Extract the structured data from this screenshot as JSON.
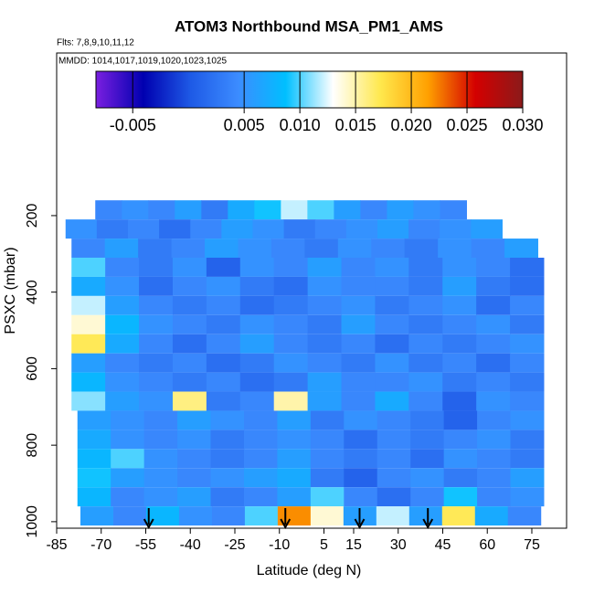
{
  "chart_data": {
    "type": "curtain",
    "title": "ATOM3 Northbound MSA_PM1_AMS",
    "flights_label": "Flts: 7,8,9,10,11,12",
    "dates_label": "MMDD: 1014,1017,1019,1020,1023,1025",
    "x_label": "Latitude (deg N)",
    "y_label": "PSXC (mbar)",
    "xlim": [
      -85,
      86.7
    ],
    "xticks": [
      -85,
      -70,
      -55,
      -40,
      -25,
      -10,
      5,
      15,
      30,
      45,
      60,
      75
    ],
    "ylim": [
      1017,
      -225
    ],
    "yticks": [
      200,
      400,
      600,
      800,
      1000
    ],
    "colorbar": {
      "clim": [
        -0.0083,
        0.03
      ],
      "colors": [
        "#7a1fe0",
        "#0000b0",
        "#1e5ae6",
        "#3c8cff",
        "#00bfff",
        "#ffffff",
        "#ffe84d",
        "#ffa000",
        "#d40000",
        "#8b1a1a"
      ],
      "ticks": [
        -0.005,
        0.005,
        {
          "value": 0.01,
          "label": "0.010"
        },
        0.015,
        {
          "value": 0.02,
          "label": "0.020"
        },
        0.025,
        {
          "value": 0.03,
          "label": "0.030"
        }
      ]
    },
    "arrows": [
      -54,
      -8,
      17,
      40
    ],
    "strips": [
      {
        "p": [
          160,
          210
        ],
        "lat": [
          -72,
          53
        ],
        "values": [
          0.004,
          0.005,
          0.004,
          0.006,
          0.003,
          0.007,
          0.009,
          0.012,
          0.01,
          0.006,
          0.004,
          0.006,
          0.005,
          0.004
        ]
      },
      {
        "p": [
          210,
          260
        ],
        "lat": [
          -82,
          65
        ],
        "values": [
          0.005,
          0.003,
          0.004,
          0.002,
          0.004,
          0.006,
          0.005,
          0.003,
          0.004,
          0.005,
          0.006,
          0.004,
          0.005,
          0.006
        ]
      },
      {
        "p": [
          260,
          310
        ],
        "lat": [
          -80,
          77
        ],
        "values": [
          0.004,
          0.006,
          0.003,
          0.004,
          0.006,
          0.005,
          0.004,
          0.003,
          0.005,
          0.004,
          0.003,
          0.005,
          0.004,
          0.006
        ]
      },
      {
        "p": [
          310,
          360
        ],
        "lat": [
          -80,
          79
        ],
        "values": [
          0.01,
          0.004,
          0.003,
          0.005,
          0.001,
          0.005,
          0.004,
          0.006,
          0.004,
          0.005,
          0.003,
          0.005,
          0.004,
          0.002
        ]
      },
      {
        "p": [
          360,
          410
        ],
        "lat": [
          -80,
          79
        ],
        "values": [
          0.007,
          0.005,
          0.002,
          0.004,
          0.005,
          0.003,
          0.002,
          0.005,
          0.004,
          0.004,
          0.003,
          0.006,
          0.003,
          0.002
        ]
      },
      {
        "p": [
          410,
          460
        ],
        "lat": [
          -80,
          79
        ],
        "values": [
          0.012,
          0.006,
          0.004,
          0.003,
          0.004,
          0.002,
          0.003,
          0.004,
          0.005,
          0.003,
          0.004,
          0.005,
          0.002,
          0.004
        ]
      },
      {
        "p": [
          460,
          510
        ],
        "lat": [
          -80,
          79
        ],
        "values": [
          0.014,
          0.008,
          0.005,
          0.004,
          0.003,
          0.005,
          0.004,
          0.003,
          0.006,
          0.004,
          0.003,
          0.004,
          0.005,
          0.003
        ]
      },
      {
        "p": [
          510,
          560
        ],
        "lat": [
          -80,
          79
        ],
        "values": [
          0.017,
          0.007,
          0.004,
          0.002,
          0.004,
          0.006,
          0.004,
          0.003,
          0.004,
          0.002,
          0.004,
          0.003,
          0.004,
          0.005
        ]
      },
      {
        "p": [
          560,
          610
        ],
        "lat": [
          -80,
          79
        ],
        "values": [
          0.006,
          0.004,
          0.003,
          0.004,
          0.002,
          0.003,
          0.005,
          0.004,
          0.003,
          0.005,
          0.003,
          0.004,
          0.002,
          0.004
        ]
      },
      {
        "p": [
          610,
          660
        ],
        "lat": [
          -80,
          79
        ],
        "values": [
          0.008,
          0.005,
          0.004,
          0.003,
          0.004,
          0.002,
          0.003,
          0.006,
          0.004,
          0.004,
          0.005,
          0.003,
          0.004,
          0.003
        ]
      },
      {
        "p": [
          660,
          710
        ],
        "lat": [
          -80,
          79
        ],
        "values": [
          0.011,
          0.006,
          0.005,
          0.016,
          0.003,
          0.004,
          0.015,
          0.006,
          0.004,
          0.007,
          0.004,
          0.001,
          0.005,
          0.004
        ]
      },
      {
        "p": [
          710,
          760
        ],
        "lat": [
          -78,
          79
        ],
        "values": [
          0.006,
          0.005,
          0.004,
          0.006,
          0.005,
          0.004,
          0.006,
          0.003,
          0.005,
          0.004,
          0.003,
          0.001,
          0.004,
          0.005
        ]
      },
      {
        "p": [
          760,
          810
        ],
        "lat": [
          -78,
          79
        ],
        "values": [
          0.007,
          0.005,
          0.004,
          0.005,
          0.003,
          0.004,
          0.005,
          0.004,
          0.002,
          0.004,
          0.003,
          0.004,
          0.005,
          0.003
        ]
      },
      {
        "p": [
          810,
          860
        ],
        "lat": [
          -78,
          79
        ],
        "values": [
          0.008,
          0.01,
          0.005,
          0.004,
          0.003,
          0.004,
          0.006,
          0.004,
          0.003,
          0.004,
          0.002,
          0.005,
          0.004,
          0.003
        ]
      },
      {
        "p": [
          860,
          910
        ],
        "lat": [
          -78,
          79
        ],
        "values": [
          0.009,
          0.006,
          0.005,
          0.004,
          0.005,
          0.006,
          0.007,
          0.003,
          0.001,
          0.004,
          0.005,
          0.003,
          0.004,
          0.006
        ]
      },
      {
        "p": [
          910,
          960
        ],
        "lat": [
          -78,
          79
        ],
        "values": [
          0.008,
          0.004,
          0.005,
          0.006,
          0.003,
          0.004,
          0.006,
          0.01,
          0.004,
          0.002,
          0.004,
          0.009,
          0.004,
          0.005
        ]
      },
      {
        "p": [
          960,
          1010
        ],
        "lat": [
          -77,
          78
        ],
        "values": [
          0.006,
          0.004,
          0.008,
          0.005,
          0.004,
          0.01,
          0.022,
          0.014,
          0.006,
          0.012,
          0.006,
          0.017,
          0.007,
          0.004
        ]
      }
    ]
  }
}
